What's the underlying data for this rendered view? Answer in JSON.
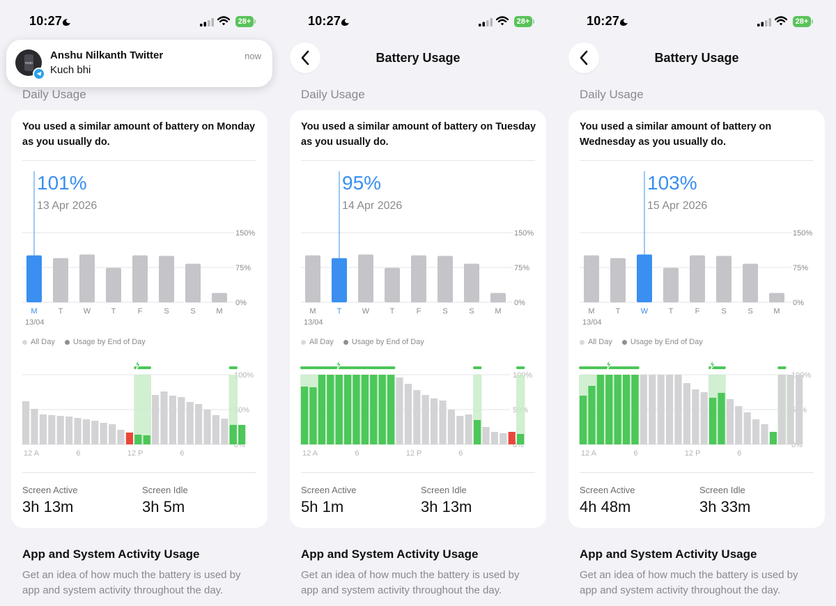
{
  "colors": {
    "accent": "#3a8ff0",
    "bar_gray": "#c4c4c9",
    "bar_green": "#4cc759",
    "charge_zone": "#c9ecc9",
    "low_red": "#e8473a",
    "hour_gray": "#d3d3d6"
  },
  "panels": [
    {
      "status": {
        "time": "10:27",
        "battery": "28+"
      },
      "notification": {
        "title": "Anshu Nilkanth Twitter",
        "body": "Kuch bhi",
        "time": "now",
        "avatar_text": "moto",
        "app_icon": "telegram-icon"
      },
      "nav": {
        "back_icon": "chevron-left-icon",
        "title": ""
      },
      "section_title": "Daily Usage",
      "summary": "You used a similar amount of battery on Monday as you usually do.",
      "callout": {
        "value": "101%",
        "date": "13 Apr 2026"
      },
      "chart_data": {
        "type": "bar",
        "categories": [
          "M",
          "T",
          "W",
          "T",
          "F",
          "S",
          "S",
          "M"
        ],
        "values": [
          101,
          95,
          103,
          74,
          101,
          100,
          83,
          20
        ],
        "highlight_index": 0,
        "date_label": "13/04",
        "y_ticks": [
          "150%",
          "75%",
          "0%"
        ],
        "ylim": [
          0,
          150
        ]
      },
      "legend": [
        "All Day",
        "Usage by End of Day"
      ],
      "level_chart": {
        "x_ticks": [
          "12 A",
          "6",
          "12 P",
          "6"
        ],
        "y_ticks": [
          "100%",
          "50%",
          "0%"
        ],
        "levels": [
          62,
          51,
          43,
          42,
          41,
          40,
          38,
          36,
          34,
          31,
          29,
          21,
          17,
          14,
          13,
          71,
          76,
          70,
          68,
          61,
          58,
          50,
          42,
          37,
          28,
          28
        ],
        "charging": [
          false,
          false,
          false,
          false,
          false,
          false,
          false,
          false,
          false,
          false,
          false,
          false,
          true,
          true,
          true,
          false,
          false,
          false,
          false,
          false,
          false,
          false,
          false,
          false,
          true,
          true
        ],
        "low": [
          false,
          false,
          false,
          false,
          false,
          false,
          false,
          false,
          false,
          false,
          false,
          false,
          true,
          false,
          false,
          false,
          false,
          false,
          false,
          false,
          false,
          false,
          false,
          false,
          false,
          false
        ],
        "charge_ranges": [
          [
            13,
            14
          ],
          [
            24,
            24
          ]
        ],
        "bolt_after": [
          13
        ]
      },
      "stats": [
        {
          "label": "Screen Active",
          "value": "3h 13m"
        },
        {
          "label": "Screen Idle",
          "value": "3h 5m"
        }
      ],
      "app_section": {
        "title": "App and System Activity Usage",
        "desc": "Get an idea of how much the battery is used by app and system activity throughout the day."
      }
    },
    {
      "status": {
        "time": "10:27",
        "battery": "28+"
      },
      "notification": null,
      "nav": {
        "back_icon": "chevron-left-icon",
        "title": "Battery Usage"
      },
      "section_title": "Daily Usage",
      "summary": "You used a similar amount of battery on Tuesday as you usually do.",
      "callout": {
        "value": "95%",
        "date": "14 Apr 2026"
      },
      "chart_data": {
        "type": "bar",
        "categories": [
          "M",
          "T",
          "W",
          "T",
          "F",
          "S",
          "S",
          "M"
        ],
        "values": [
          101,
          95,
          103,
          74,
          101,
          100,
          83,
          20
        ],
        "highlight_index": 1,
        "date_label": "13/04",
        "y_ticks": [
          "150%",
          "75%",
          "0%"
        ],
        "ylim": [
          0,
          150
        ]
      },
      "legend": [
        "All Day",
        "Usage by End of Day"
      ],
      "level_chart": {
        "x_ticks": [
          "12 A",
          "6",
          "12 P",
          "6"
        ],
        "y_ticks": [
          "100%",
          "50%",
          "0%"
        ],
        "levels": [
          83,
          82,
          100,
          100,
          100,
          100,
          100,
          100,
          100,
          100,
          100,
          96,
          87,
          78,
          71,
          66,
          63,
          50,
          41,
          43,
          35,
          25,
          18,
          16,
          18,
          15
        ],
        "charging": [
          true,
          true,
          true,
          true,
          true,
          true,
          true,
          true,
          true,
          true,
          true,
          false,
          false,
          false,
          false,
          false,
          false,
          false,
          false,
          false,
          true,
          false,
          false,
          false,
          false,
          true
        ],
        "low": [
          false,
          false,
          false,
          false,
          false,
          false,
          false,
          false,
          false,
          false,
          false,
          false,
          false,
          false,
          false,
          false,
          false,
          false,
          false,
          false,
          false,
          false,
          false,
          false,
          true,
          false
        ],
        "charge_ranges": [
          [
            0,
            10
          ],
          [
            20,
            20
          ],
          [
            25,
            25
          ]
        ],
        "bolt_after": [
          4
        ]
      },
      "stats": [
        {
          "label": "Screen Active",
          "value": "5h 1m"
        },
        {
          "label": "Screen Idle",
          "value": "3h 13m"
        }
      ],
      "app_section": {
        "title": "App and System Activity Usage",
        "desc": "Get an idea of how much the battery is used by app and system activity throughout the day."
      }
    },
    {
      "status": {
        "time": "10:27",
        "battery": "28+"
      },
      "notification": null,
      "nav": {
        "back_icon": "chevron-left-icon",
        "title": "Battery Usage"
      },
      "section_title": "Daily Usage",
      "summary": "You used a similar amount of battery on Wednesday as you usually do.",
      "callout": {
        "value": "103%",
        "date": "15 Apr 2026"
      },
      "chart_data": {
        "type": "bar",
        "categories": [
          "M",
          "T",
          "W",
          "T",
          "F",
          "S",
          "S",
          "M"
        ],
        "values": [
          101,
          95,
          103,
          74,
          101,
          100,
          83,
          20
        ],
        "highlight_index": 2,
        "date_label": "13/04",
        "y_ticks": [
          "150%",
          "75%",
          "0%"
        ],
        "ylim": [
          0,
          150
        ]
      },
      "legend": [
        "All Day",
        "Usage by End of Day"
      ],
      "level_chart": {
        "x_ticks": [
          "12 A",
          "6",
          "12 P",
          "6"
        ],
        "y_ticks": [
          "100%",
          "50%",
          "0%"
        ],
        "levels": [
          70,
          84,
          100,
          100,
          100,
          100,
          100,
          100,
          100,
          100,
          100,
          100,
          88,
          79,
          75,
          67,
          74,
          65,
          55,
          46,
          36,
          29,
          18,
          100,
          100,
          100
        ],
        "charging": [
          true,
          true,
          true,
          true,
          true,
          true,
          true,
          false,
          false,
          false,
          false,
          false,
          false,
          false,
          false,
          true,
          true,
          false,
          false,
          false,
          false,
          false,
          true,
          false,
          false,
          false
        ],
        "low": [
          false,
          false,
          false,
          false,
          false,
          false,
          false,
          false,
          false,
          false,
          false,
          false,
          false,
          false,
          false,
          false,
          false,
          false,
          false,
          false,
          false,
          false,
          false,
          false,
          false,
          false
        ],
        "charge_ranges": [
          [
            0,
            6
          ],
          [
            15,
            16
          ],
          [
            23,
            23
          ]
        ],
        "bolt_after": [
          3,
          15
        ]
      },
      "stats": [
        {
          "label": "Screen Active",
          "value": "4h 48m"
        },
        {
          "label": "Screen Idle",
          "value": "3h 33m"
        }
      ],
      "app_section": {
        "title": "App and System Activity Usage",
        "desc": "Get an idea of how much the battery is used by app and system activity throughout the day."
      }
    }
  ]
}
